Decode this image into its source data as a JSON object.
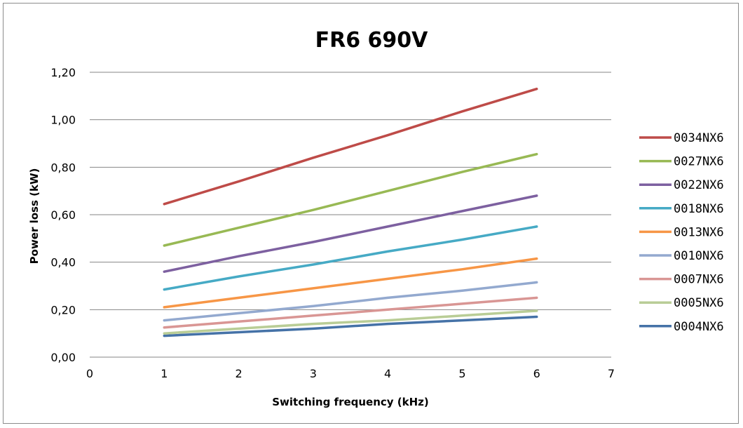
{
  "chart_data": {
    "type": "line",
    "title": "FR6 690V",
    "xlabel": "Switching frequency (kHz)",
    "ylabel": "Power loss (kW)",
    "xlim": [
      0,
      7
    ],
    "ylim": [
      0,
      1.2
    ],
    "x_ticks": [
      "0",
      "1",
      "2",
      "3",
      "4",
      "5",
      "6",
      "7"
    ],
    "y_ticks": [
      "0,00",
      "0,20",
      "0,40",
      "0,60",
      "0,80",
      "1,00",
      "1,20"
    ],
    "grid": "horizontal",
    "legend_position": "right",
    "x": [
      1,
      2,
      3,
      4,
      5,
      6
    ],
    "series": [
      {
        "name": "0034NX6",
        "color": "#be4b48",
        "values": [
          0.645,
          0.74,
          0.84,
          0.935,
          1.035,
          1.13
        ]
      },
      {
        "name": "0027NX6",
        "color": "#98b954",
        "values": [
          0.47,
          0.545,
          0.62,
          0.7,
          0.78,
          0.855
        ]
      },
      {
        "name": "0022NX6",
        "color": "#7d60a0",
        "values": [
          0.36,
          0.425,
          0.485,
          0.55,
          0.615,
          0.68
        ]
      },
      {
        "name": "0018NX6",
        "color": "#46aac5",
        "values": [
          0.285,
          0.34,
          0.39,
          0.445,
          0.495,
          0.55
        ]
      },
      {
        "name": "0013NX6",
        "color": "#f79646",
        "values": [
          0.21,
          0.25,
          0.29,
          0.33,
          0.37,
          0.415
        ]
      },
      {
        "name": "0010NX6",
        "color": "#93a9cf",
        "values": [
          0.155,
          0.185,
          0.215,
          0.25,
          0.28,
          0.315
        ]
      },
      {
        "name": "0007NX6",
        "color": "#d99694",
        "values": [
          0.125,
          0.15,
          0.175,
          0.2,
          0.225,
          0.25
        ]
      },
      {
        "name": "0005NX6",
        "color": "#b9cd96",
        "values": [
          0.1,
          0.12,
          0.14,
          0.155,
          0.175,
          0.195
        ]
      },
      {
        "name": "0004NX6",
        "color": "#4572a7",
        "values": [
          0.09,
          0.105,
          0.12,
          0.14,
          0.155,
          0.17
        ]
      }
    ]
  }
}
